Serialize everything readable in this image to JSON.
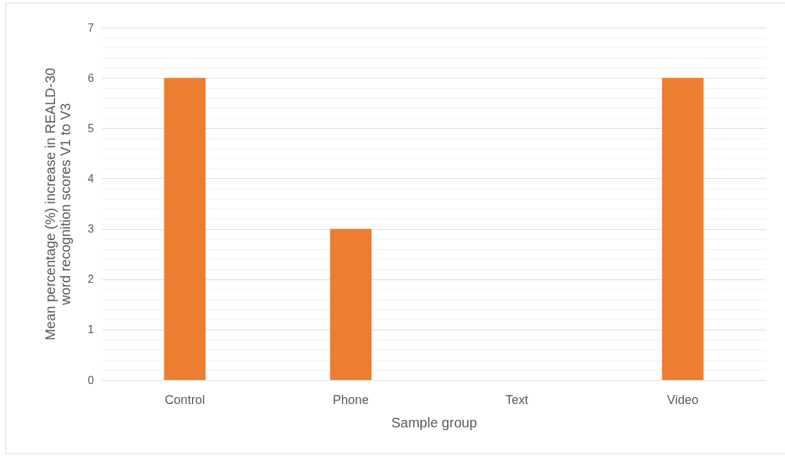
{
  "chart_data": {
    "type": "bar",
    "xlabel": "Sample group",
    "ylabel": "Mean percentage (%) increase in REALD-30\nword recognition scores V1 to V3",
    "categories": [
      "Control",
      "Phone",
      "Text",
      "Video"
    ],
    "values": [
      6,
      3,
      0,
      6
    ],
    "color": "#ed7d31",
    "ylim": [
      0,
      7
    ],
    "yticks": [
      0,
      {
        "value": 0.2,
        "label": null
      },
      {
        "value": 0.4,
        "label": null
      },
      {
        "value": 0.6,
        "label": null
      },
      {
        "value": 0.8,
        "label": null
      },
      1,
      {
        "value": 1.2,
        "label": null
      },
      {
        "value": 1.4,
        "label": null
      },
      {
        "value": 1.6,
        "label": null
      },
      {
        "value": 1.8,
        "label": null
      },
      2,
      {
        "value": 2.2,
        "label": null
      },
      {
        "value": 2.4,
        "label": null
      },
      {
        "value": 2.6,
        "label": null
      },
      {
        "value": 2.8,
        "label": null
      },
      3,
      {
        "value": 3.2,
        "label": null
      },
      {
        "value": 3.4,
        "label": null
      },
      {
        "value": 3.6,
        "label": null
      },
      {
        "value": 3.8,
        "label": null
      },
      4,
      {
        "value": 4.2,
        "label": null
      },
      {
        "value": 4.4,
        "label": null
      },
      {
        "value": 4.6,
        "label": null
      },
      {
        "value": 4.8,
        "label": null
      },
      5,
      {
        "value": 5.2,
        "label": null
      },
      {
        "value": 5.4,
        "label": null
      },
      {
        "value": 5.6,
        "label": null
      },
      {
        "value": 5.8,
        "label": null
      },
      6,
      {
        "value": 6.2,
        "label": null
      },
      {
        "value": 6.4,
        "label": null
      },
      {
        "value": 6.6,
        "label": null
      },
      {
        "value": 6.8,
        "label": null
      },
      7
    ],
    "grid": true
  }
}
